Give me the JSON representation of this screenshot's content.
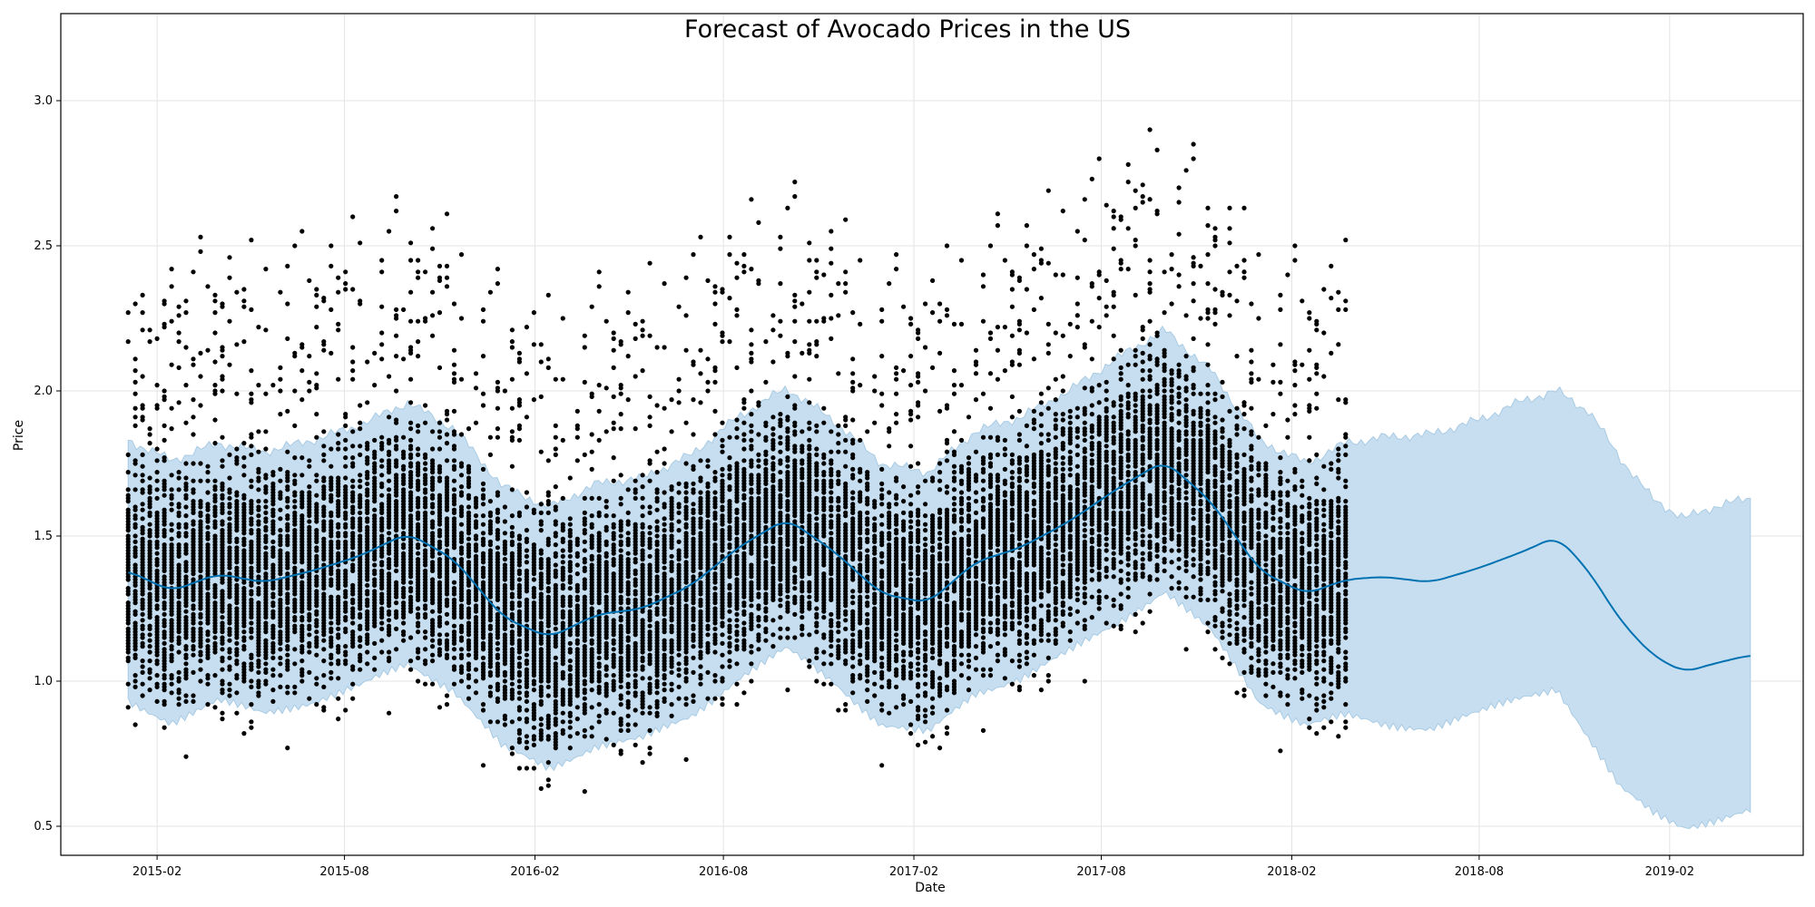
{
  "chart_data": {
    "type": "scatter",
    "title": "Forecast of Avocado Prices in the US",
    "xlabel": "Date",
    "ylabel": "Price",
    "xlim": [
      "2014-10-31",
      "2019-06-10"
    ],
    "ylim": [
      0.4,
      3.3
    ],
    "grid": true,
    "x_ticks": [
      "2015-02",
      "2015-08",
      "2016-02",
      "2016-08",
      "2017-02",
      "2017-08",
      "2018-02",
      "2018-08",
      "2019-02"
    ],
    "y_ticks": [
      0.5,
      1.0,
      1.5,
      2.0,
      2.5,
      3.0
    ],
    "colors": {
      "points": "#000000",
      "forecast_line": "#0072B2",
      "uncertainty_band": "#C6DEEF"
    },
    "observed": {
      "start": "2015-01-04",
      "end": "2018-03-25",
      "frequency": "weekly",
      "points_per_week": 108
    },
    "forecast": {
      "x": [
        "2015-01-04",
        "2015-02-15",
        "2015-04-01",
        "2015-05-15",
        "2015-07-01",
        "2015-08-15",
        "2015-10-01",
        "2015-11-15",
        "2016-01-01",
        "2016-02-15",
        "2016-04-01",
        "2016-05-15",
        "2016-07-01",
        "2016-08-15",
        "2016-10-01",
        "2016-11-15",
        "2017-01-01",
        "2017-02-15",
        "2017-04-01",
        "2017-05-15",
        "2017-07-01",
        "2017-08-15",
        "2017-10-01",
        "2017-11-15",
        "2018-01-01",
        "2018-02-15",
        "2018-03-25",
        "2018-05-01",
        "2018-06-15",
        "2018-08-01",
        "2018-09-15",
        "2018-10-15",
        "2018-11-15",
        "2018-12-15",
        "2019-01-15",
        "2019-02-15",
        "2019-03-15",
        "2019-04-20"
      ],
      "yhat": [
        1.38,
        1.31,
        1.37,
        1.34,
        1.38,
        1.43,
        1.51,
        1.42,
        1.22,
        1.15,
        1.23,
        1.25,
        1.33,
        1.46,
        1.56,
        1.45,
        1.3,
        1.27,
        1.41,
        1.46,
        1.55,
        1.66,
        1.76,
        1.62,
        1.38,
        1.3,
        1.35,
        1.36,
        1.34,
        1.39,
        1.45,
        1.5,
        1.38,
        1.21,
        1.09,
        1.03,
        1.06,
        1.09
      ],
      "yhat_lower": [
        0.93,
        0.86,
        0.93,
        0.89,
        0.93,
        0.98,
        1.06,
        0.97,
        0.77,
        0.7,
        0.78,
        0.8,
        0.88,
        1.01,
        1.11,
        1.0,
        0.85,
        0.82,
        0.96,
        1.01,
        1.1,
        1.2,
        1.31,
        1.17,
        0.93,
        0.85,
        0.88,
        0.85,
        0.84,
        0.89,
        0.95,
        0.98,
        0.8,
        0.63,
        0.55,
        0.5,
        0.52,
        0.55
      ],
      "yhat_upper": [
        1.83,
        1.76,
        1.82,
        1.79,
        1.83,
        1.88,
        1.96,
        1.87,
        1.67,
        1.6,
        1.68,
        1.7,
        1.78,
        1.91,
        2.01,
        1.9,
        1.75,
        1.72,
        1.86,
        1.91,
        2.0,
        2.11,
        2.21,
        2.07,
        1.83,
        1.75,
        1.82,
        1.84,
        1.85,
        1.9,
        1.97,
        2.0,
        1.93,
        1.77,
        1.63,
        1.56,
        1.6,
        1.63
      ]
    }
  }
}
